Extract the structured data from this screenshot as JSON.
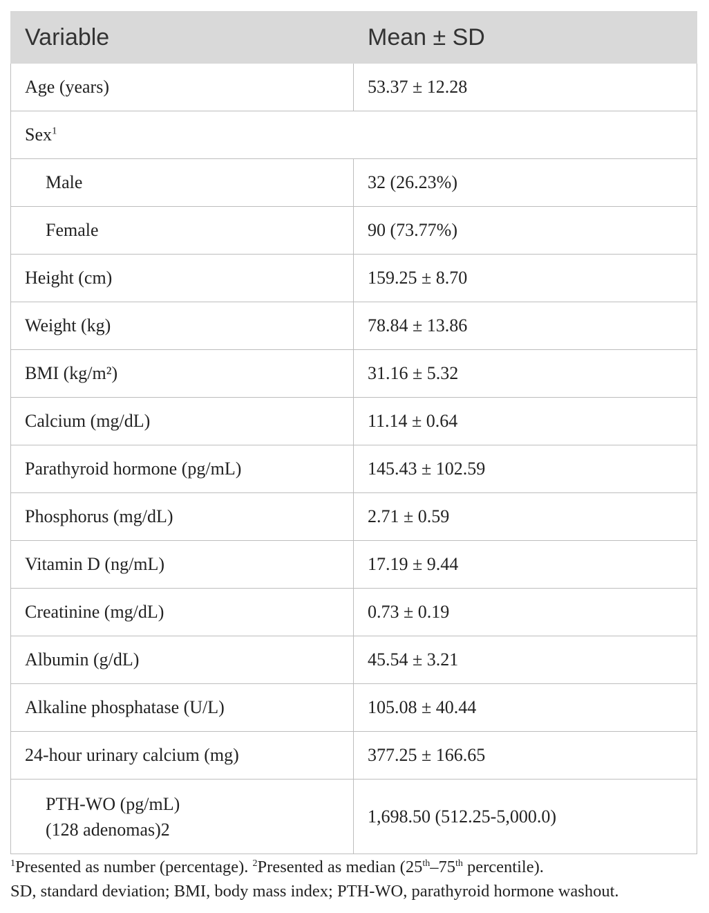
{
  "table": {
    "headers": [
      "Variable",
      "Mean ± SD"
    ],
    "rows": [
      {
        "label": "Age (years)",
        "value": "53.37 ± 12.28"
      },
      {
        "label": "Sex",
        "label_sup": "1",
        "value": ""
      },
      {
        "label": "Male",
        "value": "32 (26.23%)"
      },
      {
        "label": "Female",
        "value": "90 (73.77%)"
      },
      {
        "label": "Height (cm)",
        "value": "159.25 ± 8.70"
      },
      {
        "label": "Weight (kg)",
        "value": "78.84 ± 13.86"
      },
      {
        "label": "BMI (kg/m²)",
        "value": "31.16 ± 5.32"
      },
      {
        "label": "Calcium (mg/dL)",
        "value": "11.14 ± 0.64"
      },
      {
        "label": "Parathyroid hormone (pg/mL)",
        "value": "145.43 ± 102.59"
      },
      {
        "label": "Phosphorus (mg/dL)",
        "value": "2.71 ± 0.59"
      },
      {
        "label": "Vitamin D (ng/mL)",
        "value": "17.19 ± 9.44"
      },
      {
        "label": "Creatinine (mg/dL)",
        "value": "0.73 ± 0.19"
      },
      {
        "label": "Albumin (g/dL)",
        "value": "45.54 ± 3.21"
      },
      {
        "label": "Alkaline phosphatase (U/L)",
        "value": "105.08 ± 40.44"
      },
      {
        "label": "24-hour urinary calcium (mg)",
        "value": "377.25 ± 166.65"
      },
      {
        "label_line1": "PTH-WO (pg/mL)",
        "label_line2": "(128 adenomas)2",
        "value": "1,698.50 (512.25-5,000.0)"
      }
    ]
  },
  "footnotes": {
    "note1_sup": "1",
    "note1_text": "Presented as number (percentage). ",
    "note2_sup": "2",
    "note2_text_a": "Presented as median (25",
    "note2_th1": "th",
    "note2_text_b": "–75",
    "note2_th2": "th",
    "note2_text_c": " percentile).",
    "abbreviations": "SD, standard deviation; BMI, body mass index; PTH-WO, parathyroid hormone washout."
  }
}
